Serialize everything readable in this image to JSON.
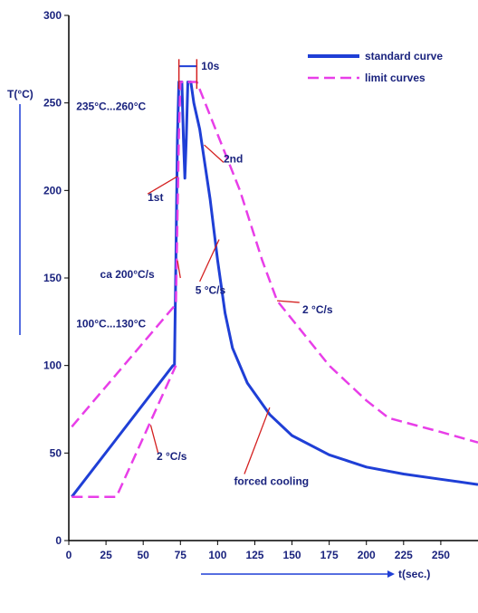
{
  "chart_data": {
    "type": "line",
    "title": "",
    "xlabel": "t(sec.)",
    "ylabel": "T(°C)",
    "xlim": [
      0,
      275
    ],
    "ylim": [
      0,
      300
    ],
    "x_ticks": [
      0,
      25,
      50,
      75,
      100,
      125,
      150,
      175,
      200,
      225,
      250
    ],
    "y_ticks": [
      0,
      50,
      100,
      150,
      200,
      250,
      300
    ],
    "legend_position": "top-right",
    "colors": {
      "standard": "#1f3fd6",
      "limit": "#e83ee8",
      "leader": "#d42020",
      "text": "#1a237e"
    },
    "series": [
      {
        "name": "standard curve",
        "style": "solid",
        "points": [
          [
            2,
            25
          ],
          [
            70,
            100
          ],
          [
            71,
            100
          ],
          [
            72,
            160
          ],
          [
            73,
            230
          ],
          [
            74,
            262
          ],
          [
            76,
            262
          ],
          [
            77,
            230
          ],
          [
            78,
            207
          ],
          [
            79,
            230
          ],
          [
            80,
            262
          ],
          [
            82,
            262
          ],
          [
            84,
            250
          ],
          [
            88,
            235
          ],
          [
            95,
            195
          ],
          [
            100,
            160
          ],
          [
            105,
            130
          ],
          [
            110,
            110
          ],
          [
            120,
            90
          ],
          [
            135,
            72
          ],
          [
            150,
            60
          ],
          [
            175,
            49
          ],
          [
            200,
            42
          ],
          [
            225,
            38
          ],
          [
            250,
            35
          ],
          [
            275,
            32
          ]
        ]
      },
      {
        "name": "limit curves",
        "style": "dashed",
        "points": [
          [
            2,
            65
          ],
          [
            72,
            135
          ],
          [
            74,
            232
          ],
          [
            75,
            262
          ],
          [
            80,
            262
          ]
        ]
      },
      {
        "name": "limit curves",
        "style": "dashed",
        "points": [
          [
            2,
            25
          ],
          [
            32,
            25
          ],
          [
            72,
            100
          ]
        ]
      },
      {
        "name": "limit curves",
        "style": "dashed",
        "points": [
          [
            80,
            262
          ],
          [
            86,
            262
          ],
          [
            100,
            232
          ],
          [
            115,
            200
          ],
          [
            130,
            160
          ],
          [
            140,
            137
          ],
          [
            175,
            100
          ],
          [
            200,
            80
          ],
          [
            215,
            70
          ],
          [
            250,
            62
          ],
          [
            275,
            56
          ]
        ]
      }
    ],
    "annotations": [
      {
        "text": "10s",
        "x": 89,
        "y": 271
      },
      {
        "text": "235°C...260°C",
        "x": 5,
        "y": 248
      },
      {
        "text": "2nd",
        "x": 104,
        "y": 218
      },
      {
        "text": "1st",
        "x": 53,
        "y": 196
      },
      {
        "text": "ca 200°C/s",
        "x": 21,
        "y": 152
      },
      {
        "text": "5 °C/s",
        "x": 85,
        "y": 143
      },
      {
        "text": "2 °C/s",
        "x": 157,
        "y": 132
      },
      {
        "text": "100°C...130°C",
        "x": 5,
        "y": 124
      },
      {
        "text": "2 °C/s",
        "x": 59,
        "y": 48
      },
      {
        "text": "forced cooling",
        "x": 111,
        "y": 34
      }
    ],
    "leader_lines": [
      [
        [
          53,
          198
        ],
        [
          73,
          208
        ]
      ],
      [
        [
          104,
          216
        ],
        [
          91,
          226
        ]
      ],
      [
        [
          75,
          150
        ],
        [
          73,
          160
        ]
      ],
      [
        [
          88,
          148
        ],
        [
          101,
          172
        ]
      ],
      [
        [
          155,
          136
        ],
        [
          140,
          137
        ]
      ],
      [
        [
          60,
          50
        ],
        [
          55,
          66
        ]
      ],
      [
        [
          118,
          38
        ],
        [
          135,
          76
        ]
      ]
    ]
  }
}
